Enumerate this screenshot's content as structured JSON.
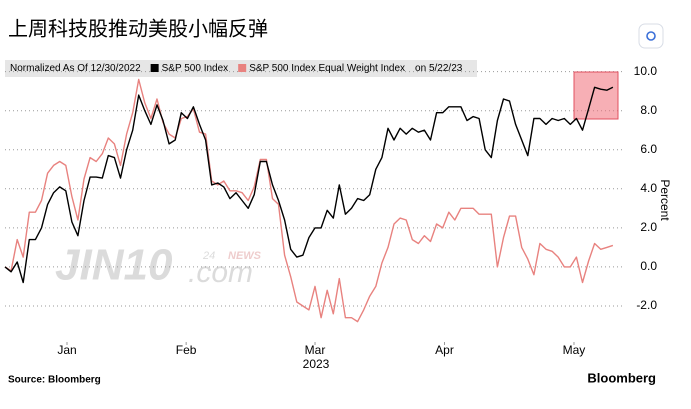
{
  "chart_data": {
    "type": "line",
    "title": "上周科技股推动美股小幅反弹",
    "legend_title": "Normalized As Of 12/30/2022",
    "legend_note": "on 5/22/23",
    "y_axis_label": "Percent",
    "x_axis_year": "2023",
    "source": "Source: Bloomberg",
    "brand": "Bloomberg",
    "watermark": [
      "JIN10",
      ".com",
      "24",
      "NEWS"
    ],
    "x": [
      0,
      1,
      2,
      3,
      4,
      5,
      6,
      7,
      8,
      9,
      10,
      11,
      12,
      13,
      14,
      15,
      16,
      17,
      18,
      19,
      20,
      21,
      22,
      23,
      24,
      25,
      26,
      27,
      28,
      29,
      30,
      31,
      32,
      33,
      34,
      35,
      36,
      37,
      38,
      39,
      40,
      41,
      42,
      43,
      44,
      45,
      46,
      47,
      48,
      49,
      50,
      51,
      52,
      53,
      54,
      55,
      56,
      57,
      58,
      59,
      60,
      61,
      62,
      63,
      64,
      65,
      66,
      67,
      68,
      69,
      70,
      71,
      72,
      73,
      74,
      75,
      76,
      77,
      78,
      79,
      80,
      81,
      82,
      83,
      84,
      85,
      86,
      87,
      88,
      89,
      90,
      91,
      92,
      93,
      94,
      95,
      96,
      97,
      98,
      99,
      100
    ],
    "xlim": [
      0,
      101.5
    ],
    "xticks": [
      {
        "value": 10.2,
        "label": "Jan"
      },
      {
        "value": 29.8,
        "label": "Feb"
      },
      {
        "value": 51,
        "label": "Mar"
      },
      {
        "value": 72.3,
        "label": "Apr"
      },
      {
        "value": 93.6,
        "label": "May"
      }
    ],
    "ylim": [
      -4,
      10.7
    ],
    "yticks": [
      {
        "value": -2,
        "label": "-2.0"
      },
      {
        "value": 0,
        "label": "0.0"
      },
      {
        "value": 2,
        "label": "2.0"
      },
      {
        "value": 4,
        "label": "4.0"
      },
      {
        "value": 6,
        "label": "6.0"
      },
      {
        "value": 8,
        "label": "8.0"
      },
      {
        "value": 10,
        "label": "10.0"
      }
    ],
    "grid": true,
    "series": [
      {
        "name": "S&P 500 Index",
        "color": "#000000",
        "values": [
          0,
          -0.25,
          0.25,
          -0.8,
          1.4,
          1.4,
          2.0,
          3.2,
          3.8,
          4.1,
          3.9,
          2.3,
          1.6,
          3.4,
          4.6,
          4.6,
          4.55,
          5.7,
          5.6,
          4.55,
          6.0,
          7.0,
          8.8,
          8.0,
          7.3,
          8.3,
          7.5,
          6.3,
          6.5,
          7.9,
          7.6,
          8.2,
          7.3,
          6.5,
          4.2,
          4.3,
          4.1,
          3.5,
          3.8,
          3.4,
          3.0,
          3.7,
          5.4,
          5.4,
          4.2,
          3.4,
          2.4,
          0.9,
          0.5,
          0.6,
          1.5,
          2.0,
          2.0,
          2.9,
          2.5,
          4.2,
          2.7,
          3.0,
          3.5,
          3.4,
          3.7,
          5.0,
          5.6,
          7.1,
          6.5,
          7.1,
          6.8,
          7.1,
          6.9,
          7.0,
          6.5,
          7.9,
          7.9,
          8.2,
          8.2,
          8.2,
          7.5,
          7.7,
          7.6,
          6.0,
          5.6,
          7.5,
          8.6,
          8.5,
          7.3,
          6.5,
          5.7,
          7.6,
          7.6,
          7.3,
          7.6,
          7.5,
          7.6,
          7.3,
          7.6,
          7.0,
          8.1,
          9.2,
          9.1,
          9.05,
          9.2
        ]
      },
      {
        "name": "S&P 500 Index Equal Weight Index",
        "color": "#e8827f",
        "values": [
          0,
          -0.2,
          1.4,
          0.5,
          2.8,
          2.8,
          3.4,
          4.8,
          5.2,
          5.4,
          5.2,
          3.6,
          2.4,
          4.5,
          5.6,
          5.4,
          5.8,
          6.6,
          6.3,
          5.2,
          6.8,
          7.9,
          9.6,
          8.4,
          7.6,
          8.6,
          7.4,
          6.8,
          6.6,
          7.6,
          7.7,
          8.1,
          6.9,
          6.8,
          4.4,
          4.2,
          4.4,
          3.9,
          3.9,
          3.8,
          3.4,
          4.1,
          5.5,
          5.5,
          3.5,
          3.2,
          0.6,
          -0.5,
          -1.8,
          -2.0,
          -2.2,
          -1.0,
          -2.6,
          -1.2,
          -2.4,
          -0.6,
          -2.6,
          -2.6,
          -2.8,
          -2.2,
          -1.5,
          -1.0,
          0.2,
          1.0,
          2.2,
          2.5,
          2.4,
          1.4,
          1.2,
          1.6,
          1.3,
          2.2,
          2.0,
          2.8,
          2.4,
          3.0,
          3.0,
          3.0,
          2.7,
          2.7,
          2.7,
          0.0,
          1.5,
          2.6,
          2.6,
          1.0,
          0.4,
          -0.4,
          1.2,
          0.9,
          0.8,
          0.5,
          0.0,
          0.0,
          0.5,
          -0.8,
          0.3,
          1.2,
          0.9,
          1.0,
          1.1
        ]
      }
    ]
  }
}
